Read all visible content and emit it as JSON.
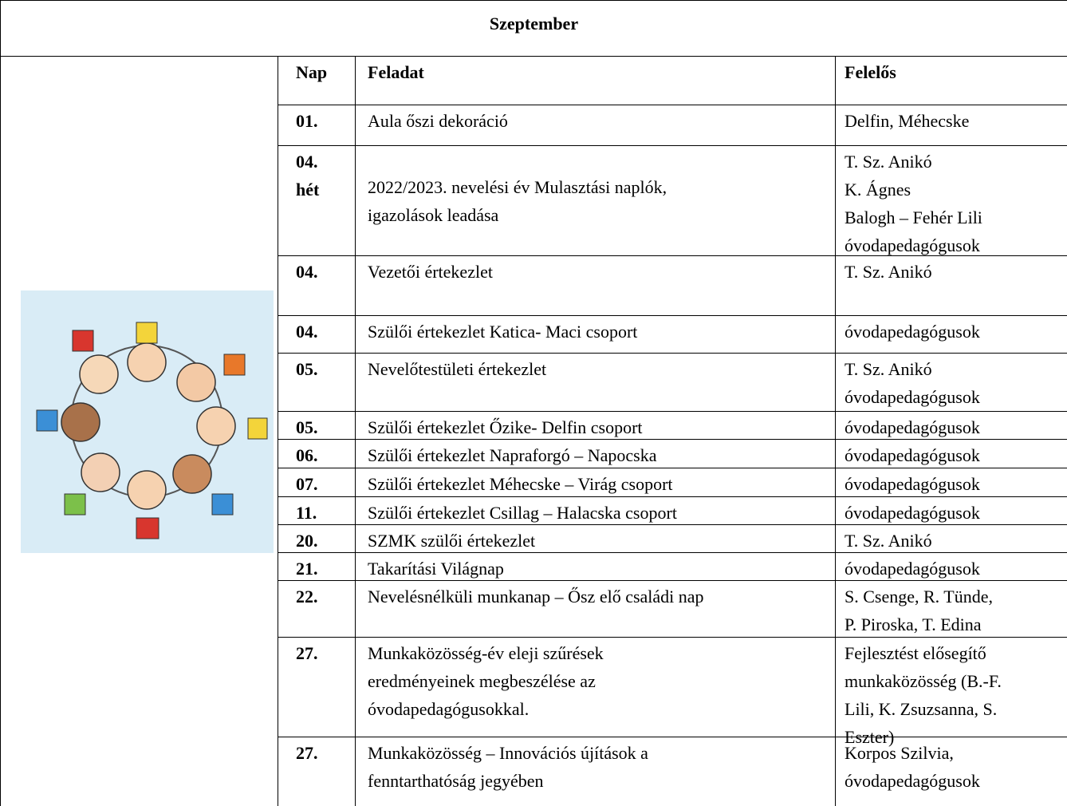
{
  "title": "Szeptember",
  "table": {
    "header": [
      "Nap",
      "Feladat",
      "Felelős"
    ],
    "rows": [
      [
        [
          "01."
        ],
        [
          "Aula őszi dekoráció"
        ],
        [
          "Delfin, Méhecske"
        ]
      ],
      [
        [
          "04.",
          "hét"
        ],
        [
          "2022/2023. nevelési év Mulasztási naplók,",
          "igazolások leadása"
        ],
        [
          "T. Sz. Anikó",
          "K. Ágnes",
          "Balogh – Fehér Lili",
          "óvodapedagógusok"
        ]
      ],
      [
        [
          "04."
        ],
        [
          "Vezetői értekezlet"
        ],
        [
          "T. Sz. Anikó"
        ]
      ],
      [
        [
          "04."
        ],
        [
          "Szülői értekezlet Katica- Maci csoport"
        ],
        [
          "óvodapedagógusok"
        ]
      ],
      [
        [
          "05."
        ],
        [
          "Nevelőtestületi értekezlet"
        ],
        [
          "T. Sz. Anikó",
          "óvodapedagógusok"
        ]
      ],
      [
        [
          "05."
        ],
        [
          "Szülői értekezlet Őzike- Delfin csoport"
        ],
        [
          "óvodapedagógusok"
        ]
      ],
      [
        [
          "06."
        ],
        [
          "Szülői értekezlet Napraforgó – Napocska"
        ],
        [
          "óvodapedagógusok"
        ]
      ],
      [
        [
          "07."
        ],
        [
          "Szülői értekezlet Méhecske – Virág csoport"
        ],
        [
          "óvodapedagógusok"
        ]
      ],
      [
        [
          "11."
        ],
        [
          "Szülői értekezlet Csillag – Halacska csoport"
        ],
        [
          "óvodapedagógusok"
        ]
      ],
      [
        [
          "20."
        ],
        [
          "SZMK szülői értekezlet"
        ],
        [
          "T. Sz. Anikó"
        ]
      ],
      [
        [
          "21."
        ],
        [
          "Takarítási Világnap"
        ],
        [
          "óvodapedagógusok"
        ]
      ],
      [
        [
          "22."
        ],
        [
          "Nevelésnélküli munkanap – Ősz elő családi nap"
        ],
        [
          "S. Csenge, R. Tünde,",
          "P. Piroska, T. Edina"
        ]
      ],
      [
        [
          "27."
        ],
        [
          "Munkaközösség-év eleji szűrések",
          "eredményeinek megbeszélése az",
          "óvodapedagógusokkal."
        ],
        [
          "Fejlesztést elősegítő",
          "munkaközösség (B.-F.",
          "Lili, K. Zsuzsanna, S.",
          "Eszter)"
        ]
      ],
      [
        [
          "27."
        ],
        [
          "Munkaközösség – Innovációs újítások a",
          "fenntarthatóság jegyében"
        ],
        [
          "Korpos Szilvia,",
          "óvodapedagógusok"
        ]
      ]
    ]
  }
}
